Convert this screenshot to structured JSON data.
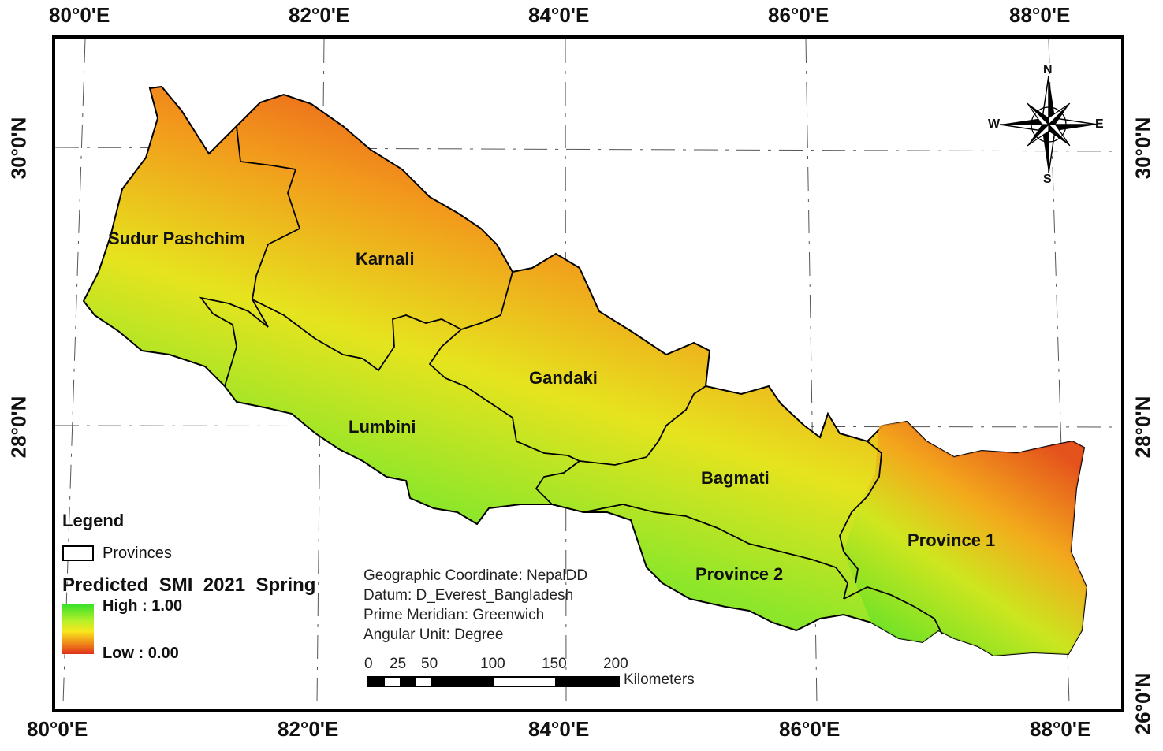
{
  "map": {
    "top_ticks": [
      "80°0'E",
      "82°0'E",
      "84°0'E",
      "86°0'E",
      "88°0'E"
    ],
    "bottom_ticks": [
      "80°0'E",
      "82°0'E",
      "84°0'E",
      "86°0'E",
      "88°0'E"
    ],
    "left_ticks": [
      "30°0'N",
      "28°0'N"
    ],
    "right_ticks": [
      "30°0'N",
      "28°0'N",
      "26°0'N"
    ],
    "provinces": [
      "Sudur Pashchim",
      "Karnali",
      "Gandaki",
      "Lumbini",
      "Bagmati",
      "Province 1",
      "Province 2"
    ],
    "compass": {
      "n": "N",
      "s": "S",
      "e": "E",
      "w": "W"
    },
    "colors": {
      "high": "#33e02a",
      "mid": "#f8e71c",
      "low": "#e0301c",
      "border": "#000000"
    }
  },
  "legend": {
    "title": "Legend",
    "provinces_label": "Provinces",
    "layer_name": "Predicted_SMI_2021_Spring",
    "high_label": "High : 1.00",
    "low_label": "Low : 0.00"
  },
  "info": {
    "line1": "Geographic Coordinate: NepalDD",
    "line2": "Datum: D_Everest_Bangladesh",
    "line3": "Prime Meridian: Greenwich",
    "line4": "Angular Unit:  Degree"
  },
  "scale": {
    "labels": [
      "0",
      "25",
      "50",
      "100",
      "150",
      "200"
    ],
    "unit": "Kilometers"
  }
}
